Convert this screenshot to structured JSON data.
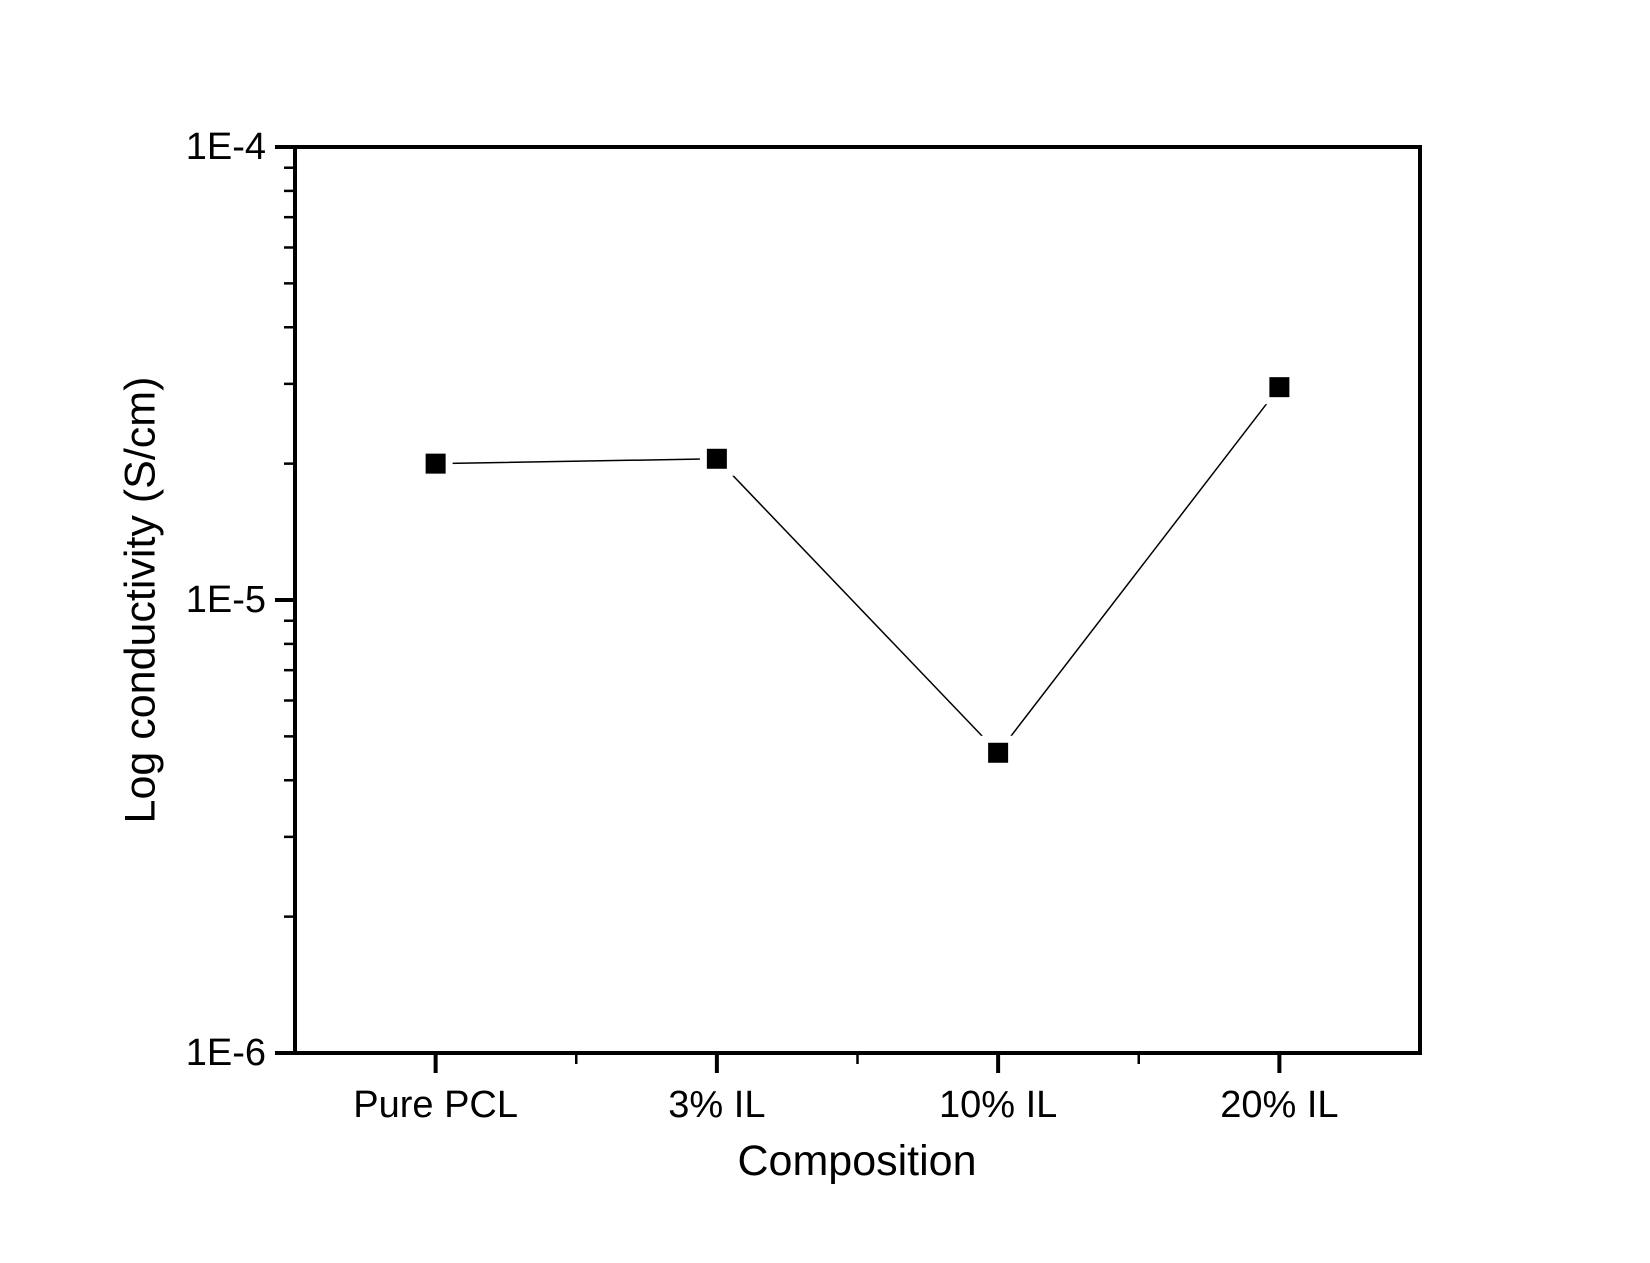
{
  "figure": {
    "background_color": "#ffffff",
    "axis_color": "#000000"
  },
  "chart_data": {
    "type": "line",
    "title": "",
    "xlabel": "Composition",
    "ylabel": "Log conductivity (S/cm)",
    "categories": [
      "Pure PCL",
      "3% IL",
      "10% IL",
      "20% IL"
    ],
    "values": [
      2e-05,
      2.05e-05,
      4.6e-06,
      2.95e-05
    ],
    "yscale": "log",
    "ylim": [
      1e-06,
      0.0001
    ],
    "yticks": [
      {
        "value": 0.0001,
        "label": "1E-4"
      },
      {
        "value": 1e-05,
        "label": "1E-5"
      },
      {
        "value": 1e-06,
        "label": "1E-6"
      }
    ],
    "grid": false,
    "legend": "none",
    "marker": "filled-square",
    "line_color": "#000000",
    "marker_color": "#000000"
  }
}
